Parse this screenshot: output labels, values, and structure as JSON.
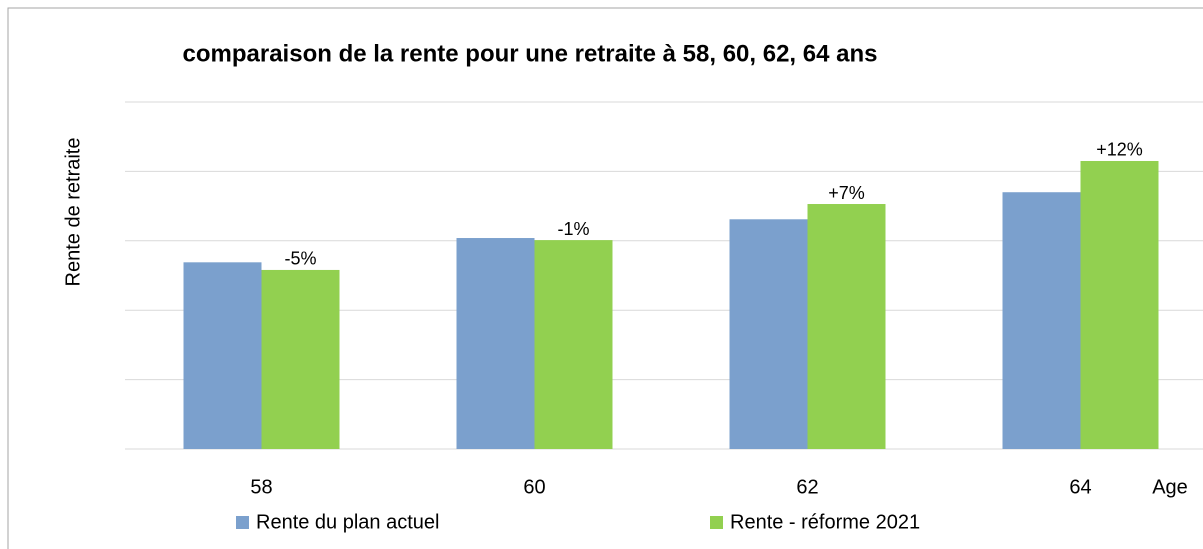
{
  "chart_data": {
    "type": "bar",
    "title": "comparaison de la rente pour une retraite à 58, 60, 62, 64 ans",
    "ylabel": "Rente de retraite",
    "xlabel": "Age",
    "categories": [
      "58",
      "60",
      "62",
      "64"
    ],
    "series": [
      {
        "name": "Rente du plan actuel",
        "color": "#7ba0cd",
        "values": [
          2.69,
          3.04,
          3.31,
          3.7
        ]
      },
      {
        "name": "Rente - réforme 2021",
        "color": "#92d050",
        "values": [
          2.58,
          3.01,
          3.53,
          4.15
        ]
      }
    ],
    "annotations": [
      "-5%",
      "-1%",
      "+7%",
      "+12%"
    ],
    "ylim": [
      0,
      5
    ],
    "yticks": [
      0,
      1,
      2,
      3,
      4,
      5
    ],
    "grid": true,
    "legend": "bottom"
  }
}
